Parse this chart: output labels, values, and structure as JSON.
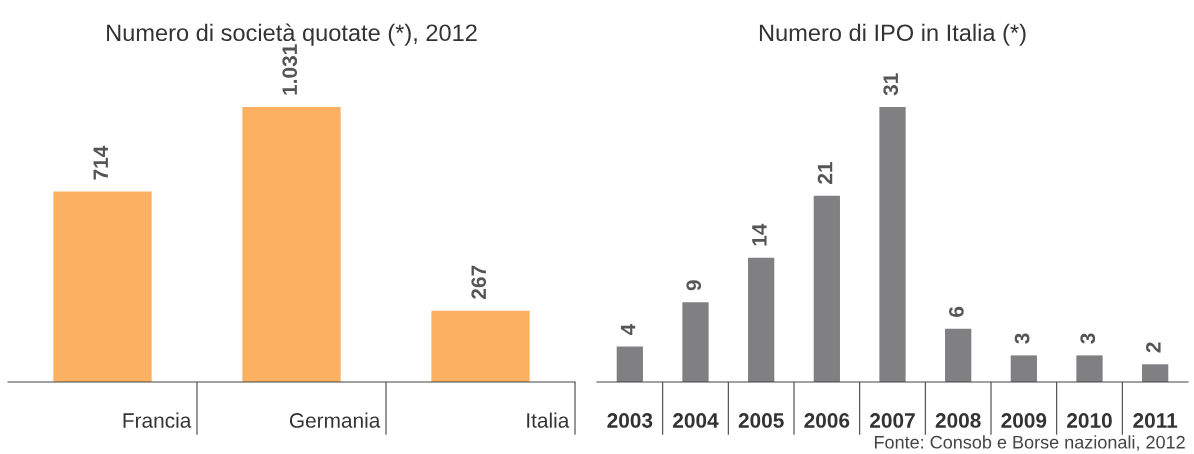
{
  "chart_data": [
    {
      "type": "bar",
      "title": "Numero di società quotate (*), 2012",
      "categories": [
        "Francia",
        "Germania",
        "Italia"
      ],
      "values": [
        714,
        1031,
        267
      ],
      "value_labels": [
        "714",
        "1.031",
        "267"
      ],
      "color": "#fbb161",
      "grid": false,
      "legend": false
    },
    {
      "type": "bar",
      "title": "Numero di IPO in Italia (*)",
      "categories": [
        "2003",
        "2004",
        "2005",
        "2006",
        "2007",
        "2008",
        "2009",
        "2010",
        "2011"
      ],
      "values": [
        4,
        9,
        14,
        21,
        31,
        6,
        3,
        3,
        2
      ],
      "data_labels": true,
      "color": "#808083",
      "grid": false,
      "legend": false,
      "annotations": [
        "Fonte: Consob e Borse nazionali, 2012"
      ]
    }
  ]
}
